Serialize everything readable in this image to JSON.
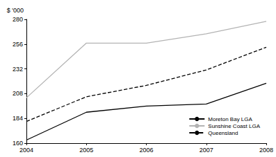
{
  "chart_data": {
    "type": "line",
    "y_label": "$ '000",
    "categories": [
      "2004",
      "2005",
      "2006",
      "2007",
      "2008"
    ],
    "series": [
      {
        "name": "Moreton Bay LGA",
        "color": "#000000",
        "line_style": "solid",
        "values": [
          163,
          190,
          196,
          198,
          218
        ]
      },
      {
        "name": "Sunshine Coast LGA",
        "color": "#b3b3b3",
        "line_style": "solid",
        "values": [
          204,
          257,
          257,
          266,
          278
        ]
      },
      {
        "name": "Queensland",
        "color": "#000000",
        "line_style": "dashed",
        "values": [
          181,
          205,
          216,
          231,
          253
        ]
      }
    ],
    "ylim": [
      160,
      280
    ],
    "yticks": [
      160,
      184,
      208,
      232,
      256,
      280
    ],
    "grid": false,
    "legend": "lower right"
  }
}
